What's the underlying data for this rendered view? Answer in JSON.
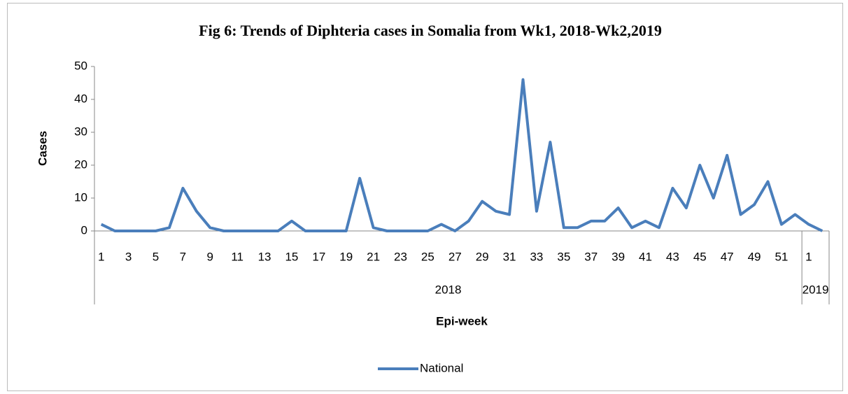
{
  "chart_data": {
    "type": "line",
    "title": "Fig 6: Trends of Diphteria cases in Somalia from Wk1, 2018-Wk2,2019",
    "y_label": "Cases",
    "x_label": "Epi-week",
    "categories": [
      "1",
      null,
      "3",
      null,
      "5",
      null,
      "7",
      null,
      "9",
      null,
      "11",
      null,
      "13",
      null,
      "15",
      null,
      "17",
      null,
      "19",
      null,
      "21",
      null,
      "23",
      null,
      "25",
      null,
      "27",
      null,
      "29",
      null,
      "31",
      null,
      "33",
      null,
      "35",
      null,
      "37",
      null,
      "39",
      null,
      "41",
      null,
      "43",
      null,
      "45",
      null,
      "47",
      null,
      "49",
      null,
      "51",
      null,
      "1",
      null
    ],
    "x_groups": [
      {
        "name": "2018",
        "count": 52
      },
      {
        "name": "2019",
        "count": 2
      }
    ],
    "series": [
      {
        "name": "National",
        "color": "#4a7ebb",
        "values": [
          2,
          0,
          0,
          0,
          0,
          1,
          13,
          6,
          1,
          0,
          0,
          0,
          0,
          0,
          3,
          0,
          0,
          0,
          0,
          16,
          1,
          0,
          0,
          0,
          0,
          2,
          0,
          3,
          9,
          6,
          5,
          46,
          6,
          27,
          1,
          1,
          3,
          3,
          7,
          1,
          3,
          1,
          13,
          7,
          20,
          10,
          23,
          5,
          8,
          15,
          2,
          5,
          2,
          0
        ]
      }
    ],
    "ylim": [
      0,
      50
    ],
    "yticks": [
      0,
      10,
      20,
      30,
      40,
      50
    ],
    "grid": false,
    "legend": "bottom"
  }
}
